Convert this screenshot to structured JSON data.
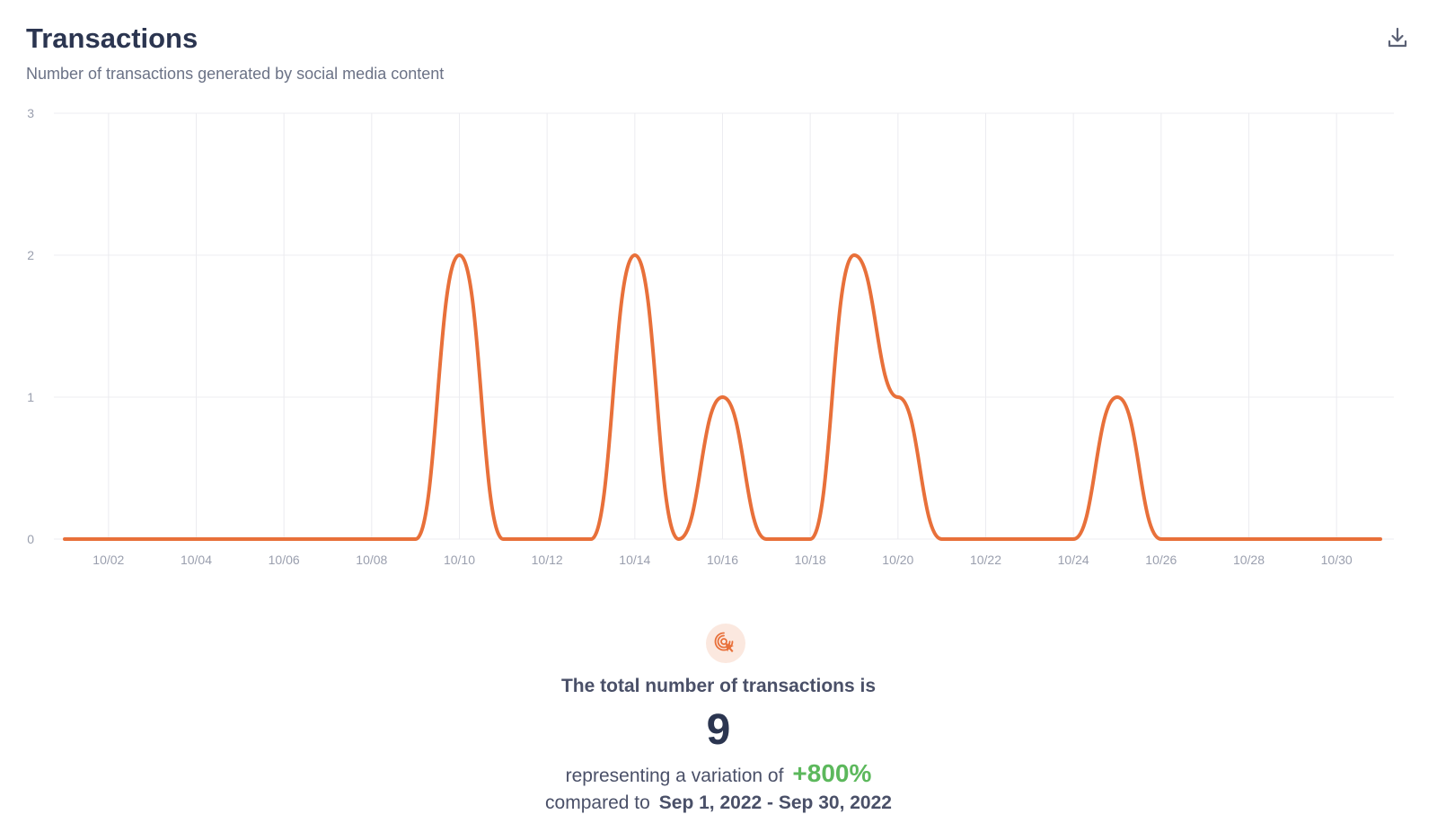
{
  "header": {
    "title": "Transactions",
    "subtitle": "Number of transactions generated by social media content"
  },
  "download": {
    "icon": "download-icon"
  },
  "chart_data": {
    "type": "line",
    "title": "Transactions",
    "xlabel": "",
    "ylabel": "",
    "ylim": [
      0,
      3
    ],
    "yticks": [
      0,
      1,
      2,
      3
    ],
    "grid": true,
    "line_color": "#e8703a",
    "days": [
      1,
      2,
      3,
      4,
      5,
      6,
      7,
      8,
      9,
      10,
      11,
      12,
      13,
      14,
      15,
      16,
      17,
      18,
      19,
      20,
      21,
      22,
      23,
      24,
      25,
      26,
      27,
      28,
      29,
      30,
      31
    ],
    "values": [
      0,
      0,
      0,
      0,
      0,
      0,
      0,
      0,
      0,
      2,
      0,
      0,
      0,
      2,
      0,
      1,
      0,
      0,
      2,
      1,
      0,
      0,
      0,
      0,
      1,
      0,
      0,
      0,
      0,
      0,
      0
    ],
    "xtick_days": [
      2,
      4,
      6,
      8,
      10,
      12,
      14,
      16,
      18,
      20,
      22,
      24,
      26,
      28,
      30
    ],
    "xtick_labels": [
      "10/02",
      "10/04",
      "10/06",
      "10/08",
      "10/10",
      "10/12",
      "10/14",
      "10/16",
      "10/18",
      "10/20",
      "10/22",
      "10/24",
      "10/26",
      "10/28",
      "10/30"
    ]
  },
  "summary": {
    "icon": "click-target-icon",
    "label": "The total number of transactions is",
    "total": "9",
    "variation_prefix": "representing a variation of",
    "variation_value": "+800%",
    "compare_prefix": "compared to",
    "compare_range": "Sep 1, 2022 - Sep 30, 2022"
  },
  "colors": {
    "accent": "#e8703a",
    "positive": "#5cb85c",
    "title": "#2b3550"
  }
}
